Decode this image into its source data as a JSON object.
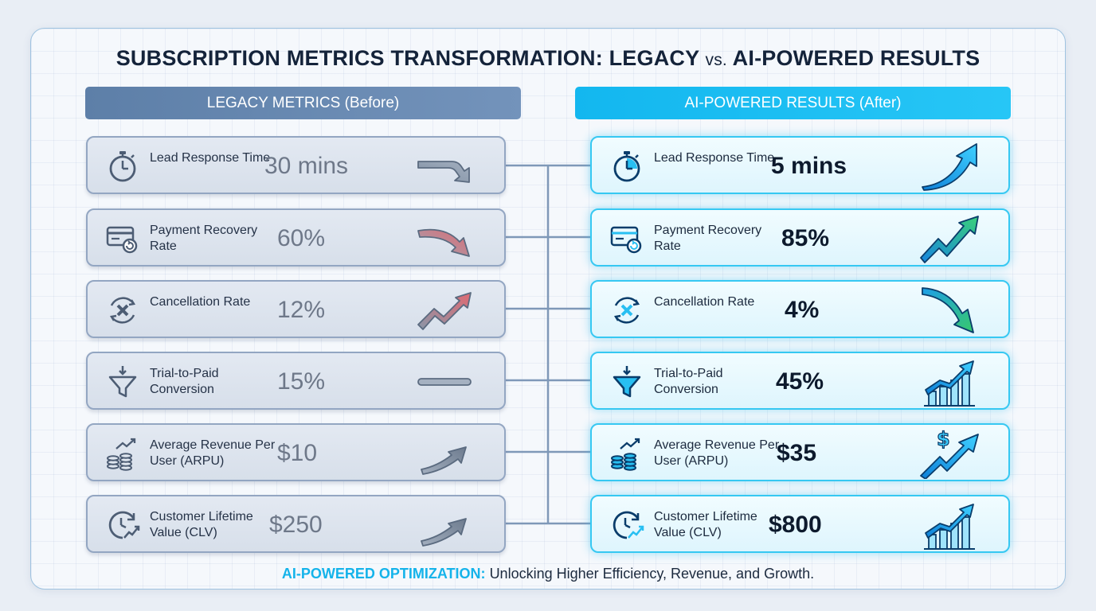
{
  "title": {
    "part1": "SUBSCRIPTION METRICS TRANSFORMATION: LEGACY",
    "vs": "vs.",
    "part2": "AI-POWERED RESULTS"
  },
  "left_header": "LEGACY METRICS (Before)",
  "right_header": "AI-POWERED RESULTS (After)",
  "legacy": [
    {
      "label": "Lead Response Time",
      "value": "30 mins",
      "icon": "stopwatch-icon",
      "trend": "down"
    },
    {
      "label": "Payment Recovery Rate",
      "value": "60%",
      "icon": "card-refund-icon",
      "trend": "down"
    },
    {
      "label": "Cancellation Rate",
      "value": "12%",
      "icon": "cancel-cycle-icon",
      "trend": "up"
    },
    {
      "label": "Trial-to-Paid Conversion",
      "value": "15%",
      "icon": "funnel-icon",
      "trend": "flat"
    },
    {
      "label": "Average Revenue Per User (ARPU)",
      "value": "$10",
      "icon": "coins-growth-icon",
      "trend": "slight-up"
    },
    {
      "label": "Customer Lifetime Value (CLV)",
      "value": "$250",
      "icon": "clock-growth-icon",
      "trend": "slight-up"
    }
  ],
  "ai": [
    {
      "label": "Lead Response Time",
      "value": "5 mins",
      "icon": "stopwatch-icon",
      "trend": "up"
    },
    {
      "label": "Payment Recovery Rate",
      "value": "85%",
      "icon": "card-refund-icon",
      "trend": "up"
    },
    {
      "label": "Cancellation Rate",
      "value": "4%",
      "icon": "cancel-cycle-icon",
      "trend": "down"
    },
    {
      "label": "Trial-to-Paid Conversion",
      "value": "45%",
      "icon": "funnel-icon",
      "trend": "bars-up"
    },
    {
      "label": "Average Revenue Per User (ARPU)",
      "value": "$35",
      "icon": "coins-growth-icon",
      "trend": "dollar-up"
    },
    {
      "label": "Customer Lifetime Value (CLV)",
      "value": "$800",
      "icon": "clock-growth-icon",
      "trend": "bars-up"
    }
  ],
  "footer": {
    "accent": "AI-POWERED OPTIMIZATION:",
    "text": "Unlocking Higher Efficiency, Revenue, and Growth."
  },
  "colors": {
    "legacy_header": "#6585b0",
    "ai_header": "#1abdf2",
    "accent": "#14b3ea",
    "trend_red": "#d9626a",
    "trend_green": "#2fc36d"
  }
}
